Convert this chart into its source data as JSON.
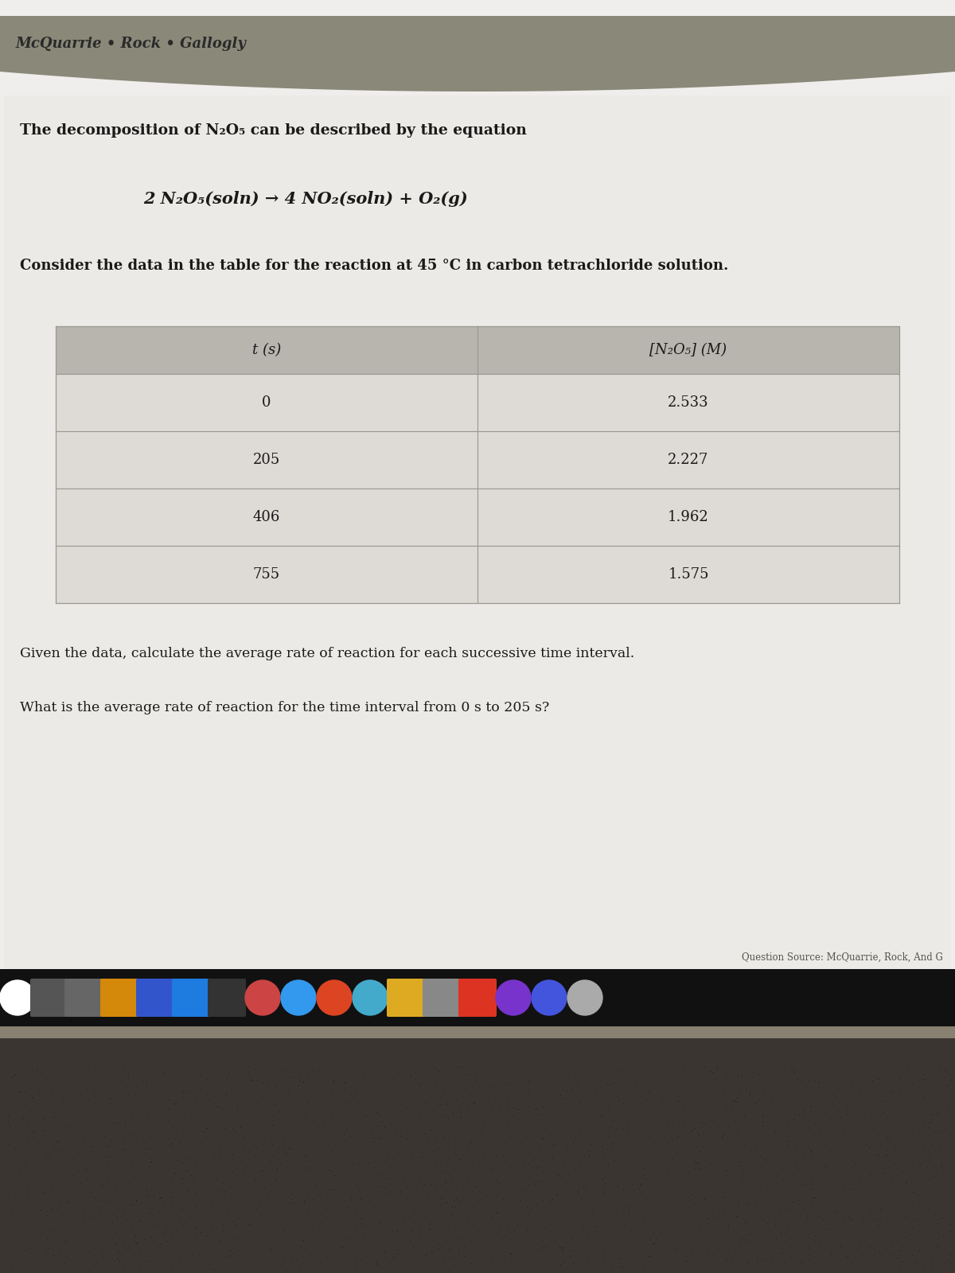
{
  "header_text": "McQuarrie • Rock • Gallogly",
  "title_line1": "The decomposition of N₂O₅ can be described by the equation",
  "equation": "2 N₂O₅(soln) → 4 NO₂(soln) + O₂(g)",
  "consider_text": "Consider the data in the table for the reaction at 45 °C in carbon tetrachloride solution.",
  "col1_header": "t (s)",
  "col2_header": "[N₂O₅] (M)",
  "table_data": [
    [
      "0",
      "2.533"
    ],
    [
      "205",
      "2.227"
    ],
    [
      "406",
      "1.962"
    ],
    [
      "755",
      "1.575"
    ]
  ],
  "question1": "Given the data, calculate the average rate of reaction for each successive time interval.",
  "question2": "What is the average rate of reaction for the time interval from 0 s to 205 s?",
  "source_text": "Question Source: McQuarrie, Rock, And G",
  "page_bg": "#f0eeec",
  "header_band_color": "#8a8878",
  "header_text_color": "#2a2a2a",
  "table_bg_header": "#b8b4ae",
  "table_bg_data": "#dedad6",
  "table_border_color": "#999990",
  "content_bg": "#eceae6",
  "taskbar_bg": "#111111",
  "taskbar_icon_row_bg": "#1a1a1a",
  "bottom_dark_bg": "#0d0d0d",
  "keyboard_bg": "#3a3530",
  "keyboard_dot_color": "#1a1512",
  "text_color": "#1a1a1a",
  "source_text_color": "#555550"
}
